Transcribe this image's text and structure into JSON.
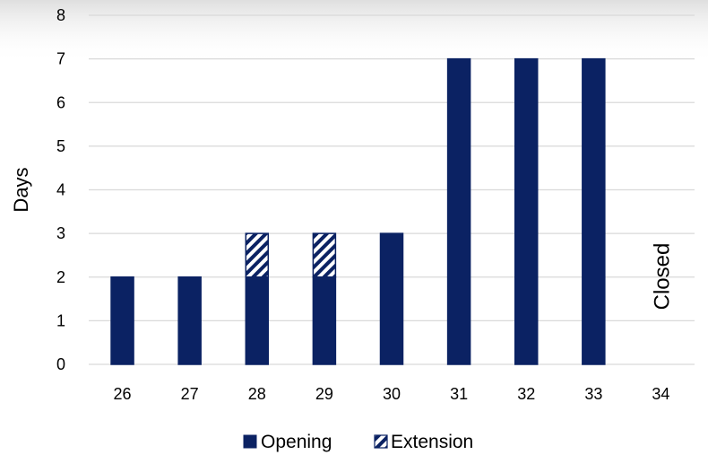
{
  "chart_data": {
    "type": "bar",
    "stacked": true,
    "categories": [
      "26",
      "27",
      "28",
      "29",
      "30",
      "31",
      "32",
      "33",
      "34"
    ],
    "series": [
      {
        "name": "Opening",
        "values": [
          2,
          2,
          2,
          2,
          3,
          7,
          7,
          7,
          null
        ],
        "color": "#0b2263",
        "pattern": "solid"
      },
      {
        "name": "Extension",
        "values": [
          0,
          0,
          1,
          1,
          0,
          0,
          0,
          0,
          null
        ],
        "color": "#0b2263",
        "pattern": "diagonal-stripes"
      }
    ],
    "ylabel": "Days",
    "ylim": [
      0,
      8
    ],
    "yticks": [
      "0",
      "1",
      "2",
      "3",
      "4",
      "5",
      "6",
      "7",
      "8"
    ],
    "grid": true,
    "legend_position": "bottom",
    "annotations": [
      {
        "category": "34",
        "text": "Closed"
      }
    ]
  }
}
